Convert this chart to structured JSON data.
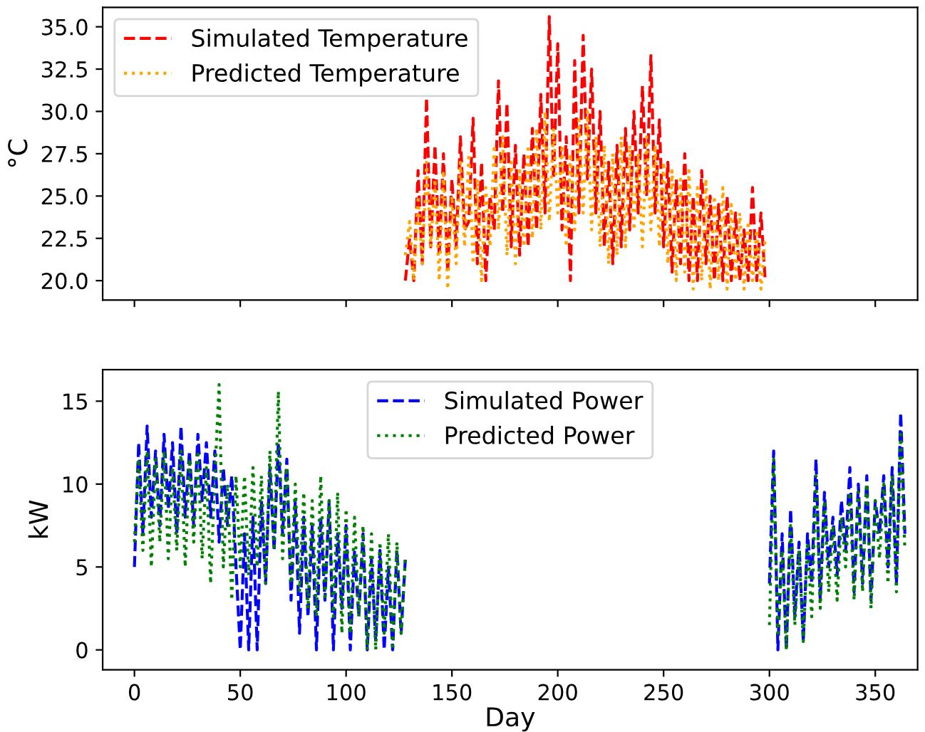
{
  "chart_data": [
    {
      "type": "line",
      "ylabel": "°C",
      "legend": "top left",
      "grid": false,
      "tick_labels": "y",
      "xlim": [
        -15,
        370
      ],
      "xticks": [
        0,
        50,
        100,
        150,
        200,
        250,
        300,
        350
      ],
      "ylim": [
        18.85,
        36.15
      ],
      "yticks": [
        {
          "value": 20,
          "label": "20.0"
        },
        {
          "value": 22.5,
          "label": "22.5"
        },
        {
          "value": 25,
          "label": "25.0"
        },
        {
          "value": 27.5,
          "label": "27.5"
        },
        {
          "value": 30,
          "label": "30.0"
        },
        {
          "value": 32.5,
          "label": "32.5"
        },
        {
          "value": 35,
          "label": "35.0"
        }
      ],
      "x": [
        128,
        130,
        132,
        134,
        136,
        138,
        140,
        142,
        144,
        146,
        148,
        150,
        152,
        154,
        156,
        158,
        160,
        162,
        164,
        166,
        168,
        170,
        172,
        174,
        176,
        178,
        180,
        182,
        184,
        186,
        188,
        190,
        192,
        194,
        196,
        198,
        200,
        202,
        204,
        206,
        208,
        210,
        212,
        214,
        216,
        218,
        220,
        222,
        224,
        226,
        228,
        230,
        232,
        234,
        236,
        238,
        240,
        242,
        244,
        246,
        248,
        250,
        252,
        254,
        256,
        258,
        260,
        262,
        264,
        266,
        268,
        270,
        272,
        274,
        276,
        278,
        280,
        282,
        284,
        286,
        288,
        290,
        292,
        294,
        296,
        298
      ],
      "series": [
        {
          "name": "Simulated Temperature",
          "color": "#ff0000",
          "line_style": "dashed",
          "values": [
            20.0,
            22.5,
            20.0,
            26.5,
            21.0,
            30.8,
            22.0,
            28.0,
            21.5,
            27.5,
            20.5,
            26.0,
            22.0,
            28.5,
            23.0,
            23.5,
            29.6,
            21.0,
            27.0,
            20.0,
            25.0,
            23.0,
            31.8,
            24.0,
            30.5,
            22.0,
            28.0,
            21.5,
            27.5,
            22.0,
            29.0,
            23.0,
            31.0,
            24.0,
            35.6,
            26.0,
            34.0,
            23.0,
            28.5,
            20.0,
            33.0,
            24.0,
            34.5,
            26.0,
            32.5,
            24.0,
            30.0,
            22.0,
            27.0,
            21.0,
            28.0,
            22.0,
            29.0,
            23.0,
            30.0,
            24.0,
            31.5,
            25.0,
            33.3,
            24.0,
            29.5,
            22.0,
            27.0,
            20.5,
            26.0,
            21.0,
            27.5,
            20.0,
            25.0,
            20.0,
            26.5,
            21.0,
            25.0,
            20.0,
            24.5,
            20.0,
            25.0,
            20.0,
            24.0,
            20.0,
            23.0,
            20.0,
            25.5,
            20.0,
            24.0,
            20.0
          ]
        },
        {
          "name": "Predicted Temperature",
          "color": "#ffa500",
          "line_style": "dotted",
          "values": [
            21.5,
            23.5,
            20.0,
            25.0,
            21.0,
            27.0,
            22.0,
            26.0,
            20.0,
            26.5,
            19.5,
            25.0,
            21.0,
            27.0,
            22.0,
            27.5,
            21.0,
            26.0,
            20.0,
            25.5,
            22.0,
            28.0,
            23.0,
            28.5,
            21.5,
            27.0,
            21.0,
            26.5,
            22.0,
            28.0,
            22.5,
            29.0,
            23.0,
            30.0,
            23.5,
            29.0,
            24.0,
            28.0,
            22.0,
            27.5,
            23.0,
            29.5,
            24.0,
            30.0,
            23.0,
            28.5,
            22.0,
            28.0,
            21.0,
            27.5,
            21.5,
            28.5,
            22.0,
            28.0,
            23.0,
            27.5,
            22.0,
            28.5,
            23.0,
            28.0,
            22.0,
            27.0,
            21.0,
            26.5,
            20.0,
            26.0,
            20.5,
            26.5,
            19.5,
            25.5,
            20.0,
            26.0,
            19.5,
            25.0,
            20.0,
            25.5,
            19.5,
            24.5,
            20.0,
            24.0,
            19.5,
            23.5,
            20.0,
            23.0,
            19.5,
            22.5
          ]
        }
      ]
    },
    {
      "type": "line",
      "xlabel": "Day",
      "ylabel": "kW",
      "legend": "top",
      "grid": false,
      "xlim": [
        -15,
        370
      ],
      "xticks": [
        0,
        50,
        100,
        150,
        200,
        250,
        300,
        350
      ],
      "ylim": [
        -1.2,
        16.9
      ],
      "yticks": [
        0,
        5,
        10,
        15
      ],
      "x": [
        0,
        2,
        4,
        6,
        8,
        10,
        12,
        14,
        16,
        18,
        20,
        22,
        24,
        26,
        28,
        30,
        32,
        34,
        36,
        38,
        40,
        42,
        44,
        46,
        48,
        50,
        52,
        54,
        56,
        58,
        60,
        62,
        64,
        66,
        68,
        70,
        72,
        74,
        76,
        78,
        80,
        82,
        84,
        86,
        88,
        90,
        92,
        94,
        96,
        98,
        100,
        102,
        104,
        106,
        108,
        110,
        112,
        114,
        116,
        118,
        120,
        122,
        124,
        126,
        128,
        214,
        300,
        302,
        304,
        306,
        308,
        310,
        312,
        314,
        316,
        318,
        320,
        322,
        324,
        326,
        328,
        330,
        332,
        334,
        336,
        338,
        340,
        342,
        344,
        346,
        348,
        350,
        352,
        354,
        356,
        358,
        360,
        362,
        364
      ],
      "series": [
        {
          "name": "Simulated Power",
          "color": "#0000ff",
          "line_style": "dashed",
          "values": [
            5.0,
            12.5,
            7.0,
            13.5,
            8.0,
            12.0,
            7.5,
            13.0,
            8.5,
            12.5,
            7.0,
            13.5,
            8.0,
            12.0,
            7.5,
            13.0,
            9.0,
            12.5,
            8.0,
            12.0,
            6.5,
            11.0,
            7.5,
            10.5,
            5.0,
            0.0,
            7.0,
            0.0,
            8.0,
            0.0,
            9.0,
            4.0,
            11.0,
            6.0,
            12.5,
            7.0,
            11.5,
            3.0,
            9.0,
            1.0,
            8.0,
            2.0,
            7.5,
            0.0,
            8.0,
            3.0,
            9.0,
            0.0,
            7.0,
            2.5,
            7.5,
            0.0,
            6.0,
            2.0,
            7.0,
            0.0,
            5.5,
            0.5,
            6.0,
            0.0,
            5.0,
            0.0,
            6.0,
            1.0,
            5.5,
            null,
            4.0,
            12.0,
            0.0,
            7.0,
            0.0,
            8.5,
            2.0,
            6.5,
            0.5,
            7.0,
            4.0,
            11.5,
            3.0,
            9.5,
            5.0,
            8.0,
            4.5,
            9.0,
            6.0,
            11.0,
            3.5,
            10.0,
            4.0,
            10.5,
            3.0,
            9.0,
            7.0,
            10.5,
            5.0,
            11.0,
            4.0,
            14.3,
            7.0
          ]
        },
        {
          "name": "Predicted Power",
          "color": "#008000",
          "line_style": "dotted",
          "values": [
            6.5,
            11.5,
            6.0,
            12.0,
            5.0,
            11.5,
            6.5,
            12.0,
            5.5,
            11.0,
            6.0,
            12.0,
            5.0,
            11.5,
            6.5,
            12.0,
            5.5,
            11.0,
            4.0,
            10.5,
            16.0,
            5.0,
            10.0,
            3.0,
            10.5,
            5.0,
            10.5,
            4.5,
            11.0,
            5.0,
            10.5,
            4.0,
            12.0,
            6.0,
            15.6,
            5.5,
            11.0,
            4.0,
            10.0,
            3.5,
            9.5,
            2.5,
            9.0,
            2.0,
            10.5,
            3.0,
            9.0,
            2.0,
            9.5,
            1.0,
            8.5,
            1.0,
            8.0,
            2.0,
            7.5,
            0.0,
            7.0,
            0.0,
            6.5,
            1.0,
            7.0,
            0.0,
            6.5,
            1.0,
            5.5,
            null,
            1.5,
            11.5,
            1.0,
            6.0,
            0.0,
            7.5,
            1.5,
            6.0,
            0.5,
            6.5,
            2.0,
            10.5,
            2.5,
            9.0,
            3.5,
            7.5,
            3.0,
            8.0,
            5.0,
            9.5,
            3.0,
            9.5,
            3.5,
            10.0,
            2.5,
            9.0,
            5.5,
            10.0,
            4.0,
            10.5,
            3.5,
            13.0,
            6.0
          ]
        }
      ]
    }
  ]
}
